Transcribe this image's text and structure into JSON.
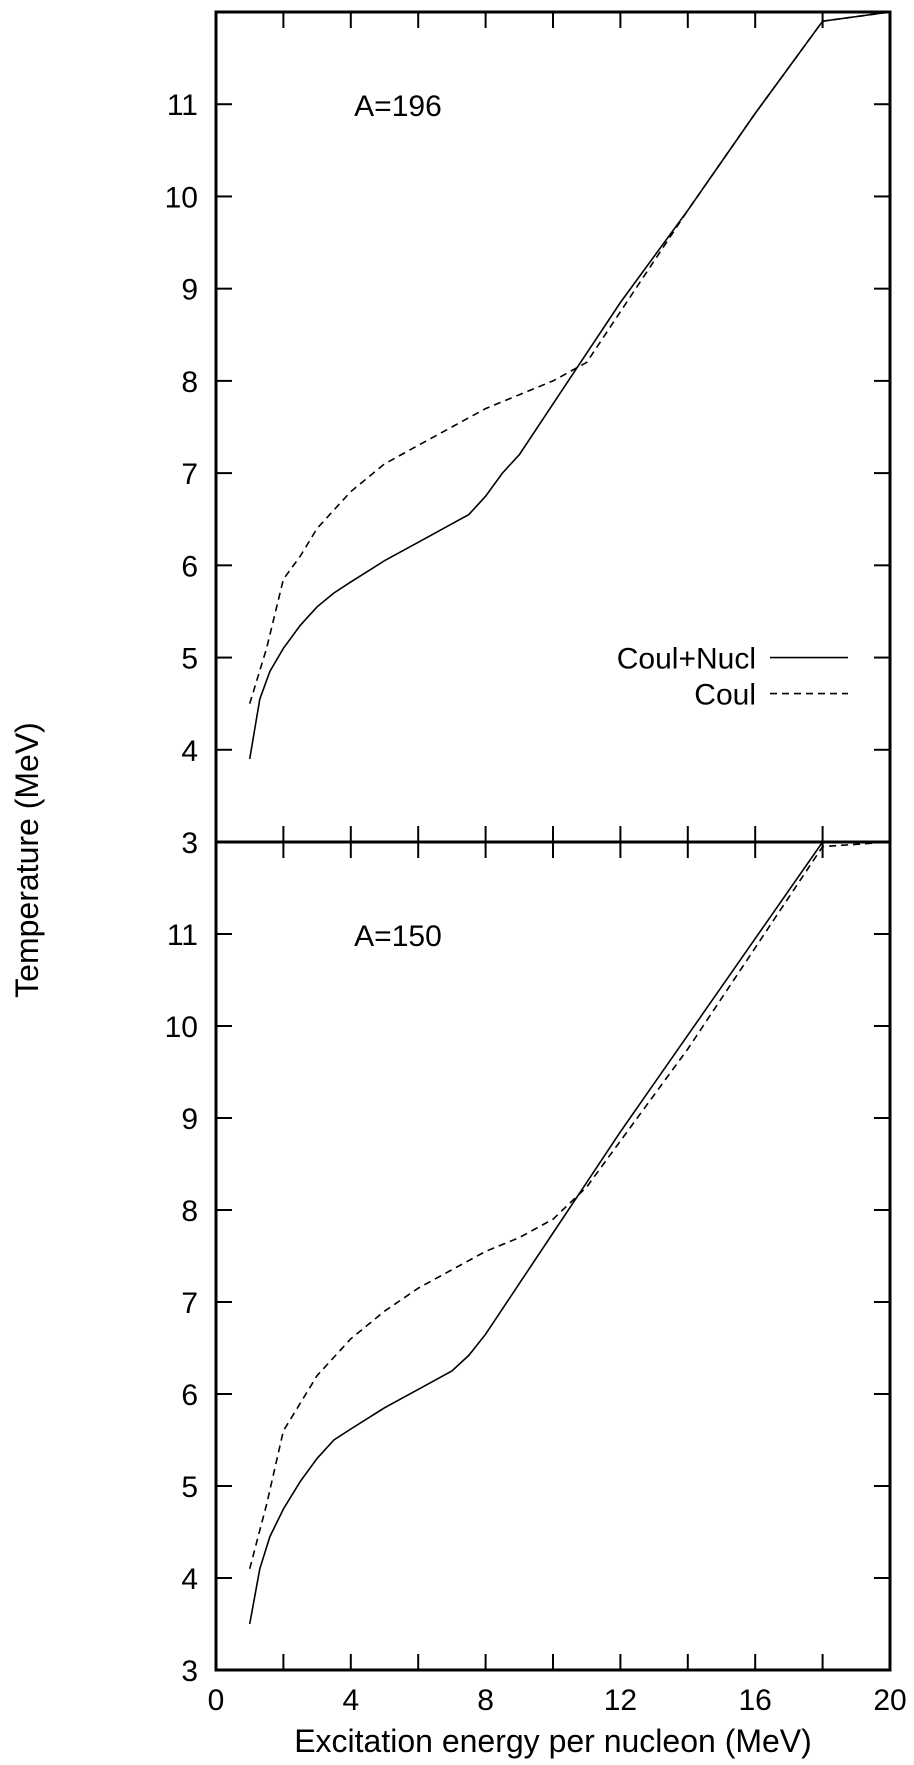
{
  "chart_data": [
    {
      "type": "line",
      "panel_label": "A=196",
      "xlim": [
        0,
        20
      ],
      "ylim": [
        3,
        12
      ],
      "x_ticks": [
        0,
        4,
        8,
        12,
        16,
        20
      ],
      "y_ticks": [
        3,
        4,
        5,
        6,
        7,
        8,
        9,
        10,
        11
      ],
      "legend": {
        "placement": "right",
        "entries": [
          "Coul+Nucl",
          "Coul"
        ]
      },
      "series": [
        {
          "name": "Coul+Nucl",
          "style": "solid",
          "x": [
            1,
            1.3,
            1.6,
            2,
            2.5,
            3,
            3.5,
            4,
            5,
            6,
            6.5,
            7,
            7.5,
            8,
            8.5,
            9,
            10,
            11,
            12,
            14,
            16,
            18,
            20
          ],
          "y": [
            3.9,
            4.55,
            4.85,
            5.1,
            5.35,
            5.55,
            5.7,
            5.82,
            6.05,
            6.25,
            6.35,
            6.45,
            6.55,
            6.75,
            7.0,
            7.2,
            7.75,
            8.3,
            8.85,
            9.85,
            10.9,
            11.9,
            12.0
          ]
        },
        {
          "name": "Coul",
          "style": "dashed",
          "x": [
            1,
            1.5,
            2,
            2.5,
            3,
            4,
            5,
            6,
            7,
            8,
            9,
            10,
            11,
            12,
            14,
            16,
            18,
            20
          ],
          "y": [
            4.5,
            5.1,
            5.85,
            6.1,
            6.4,
            6.8,
            7.1,
            7.3,
            7.5,
            7.7,
            7.85,
            8.0,
            8.2,
            8.75,
            9.85,
            10.9,
            11.9,
            12.0
          ]
        }
      ]
    },
    {
      "type": "line",
      "panel_label": "A=150",
      "xlabel": "Excitation energy per nucleon (MeV)",
      "xlim": [
        0,
        20
      ],
      "ylim": [
        3,
        12
      ],
      "x_ticks": [
        0,
        4,
        8,
        12,
        16,
        20
      ],
      "y_ticks": [
        3,
        4,
        5,
        6,
        7,
        8,
        9,
        10,
        11
      ],
      "series": [
        {
          "name": "Coul+Nucl",
          "style": "solid",
          "x": [
            1,
            1.3,
            1.6,
            2,
            2.5,
            3,
            3.5,
            4,
            5,
            6,
            6.5,
            7,
            7.5,
            8,
            9,
            10,
            11,
            12,
            14,
            16,
            18,
            20
          ],
          "y": [
            3.5,
            4.1,
            4.45,
            4.75,
            5.05,
            5.3,
            5.5,
            5.62,
            5.85,
            6.05,
            6.15,
            6.25,
            6.42,
            6.65,
            7.2,
            7.75,
            8.3,
            8.85,
            9.9,
            10.95,
            12.0,
            12.0
          ]
        },
        {
          "name": "Coul",
          "style": "dashed",
          "x": [
            1,
            1.5,
            2,
            2.5,
            3,
            4,
            5,
            6,
            7,
            8,
            9,
            10,
            11,
            12,
            14,
            16,
            18,
            20
          ],
          "y": [
            4.1,
            4.8,
            5.6,
            5.9,
            6.2,
            6.6,
            6.9,
            7.15,
            7.35,
            7.55,
            7.7,
            7.9,
            8.25,
            8.75,
            9.75,
            10.85,
            11.95,
            12.0
          ]
        }
      ]
    }
  ],
  "ylabel": "Temperature (MeV)"
}
